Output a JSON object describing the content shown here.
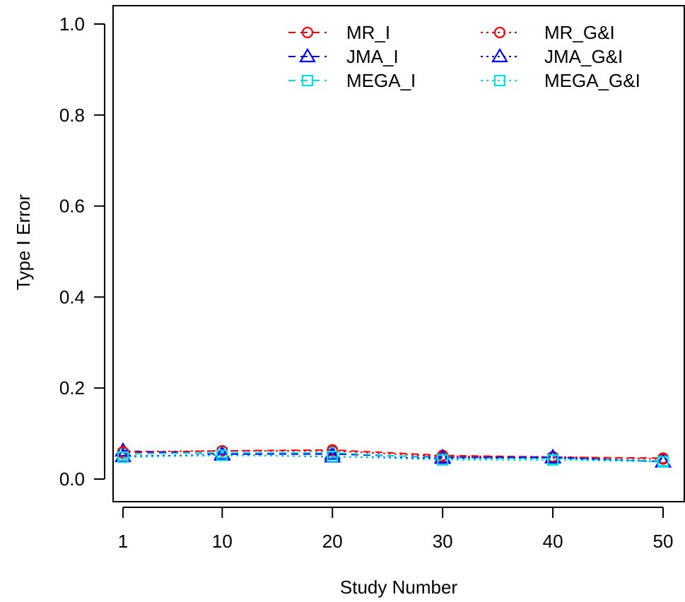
{
  "chart_data": {
    "type": "line",
    "title": "",
    "xlabel": "Study Number",
    "ylabel": "Type I Error",
    "x": [
      1,
      10,
      20,
      30,
      40,
      50
    ],
    "x_ticks": [
      "1",
      "10",
      "20",
      "30",
      "40",
      "50"
    ],
    "y_ticks": [
      "0.0",
      "0.2",
      "0.4",
      "0.6",
      "0.8",
      "1.0"
    ],
    "xlim": [
      1,
      50
    ],
    "ylim": [
      0,
      1
    ],
    "grid": false,
    "legend_position": "top-right",
    "series": [
      {
        "name": "MR_I",
        "values": [
          0.058,
          0.062,
          0.064,
          0.052,
          0.048,
          0.046
        ],
        "color": "#ff0000",
        "line": "dashed",
        "marker": "circle"
      },
      {
        "name": "JMA_I",
        "values": [
          0.062,
          0.055,
          0.055,
          0.048,
          0.048,
          0.038
        ],
        "color": "#0000ff",
        "line": "dashed",
        "marker": "triangle"
      },
      {
        "name": "MEGA_I",
        "values": [
          0.055,
          0.058,
          0.058,
          0.046,
          0.045,
          0.04
        ],
        "color": "#00e5e5",
        "line": "dashed",
        "marker": "square"
      },
      {
        "name": "MR_G&I",
        "values": [
          0.06,
          0.062,
          0.062,
          0.05,
          0.049,
          0.044
        ],
        "color": "#ff0000",
        "line": "dotted",
        "marker": "circle"
      },
      {
        "name": "JMA_G&I",
        "values": [
          0.05,
          0.053,
          0.049,
          0.046,
          0.047,
          0.038
        ],
        "color": "#0000ff",
        "line": "dotted",
        "marker": "triangle"
      },
      {
        "name": "MEGA_G&I",
        "values": [
          0.048,
          0.052,
          0.05,
          0.042,
          0.042,
          0.038
        ],
        "color": "#00e5e5",
        "line": "dotted",
        "marker": "square"
      }
    ]
  }
}
